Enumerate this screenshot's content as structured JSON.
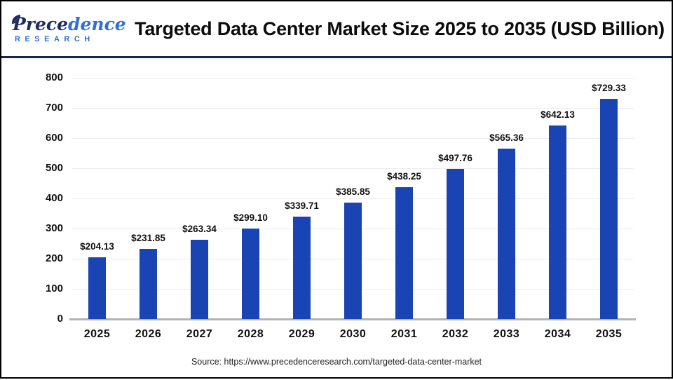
{
  "header": {
    "logo": {
      "name_navy": "Prece",
      "name_blue": "dence",
      "subtitle": "RESEARCH"
    }
  },
  "chart_data": {
    "type": "bar",
    "title": "Targeted Data Center Market Size 2025 to 2035 (USD Billion)",
    "categories": [
      "2025",
      "2026",
      "2027",
      "2028",
      "2029",
      "2030",
      "2031",
      "2032",
      "2033",
      "2034",
      "2035"
    ],
    "values": [
      204.13,
      231.85,
      263.34,
      299.1,
      339.71,
      385.85,
      438.25,
      497.76,
      565.36,
      642.13,
      729.33
    ],
    "bar_labels": [
      "$204.13",
      "$231.85",
      "$263.34",
      "$299.10",
      "$339.71",
      "$385.85",
      "$438.25",
      "$497.76",
      "$565.36",
      "$642.13",
      "$729.33"
    ],
    "xlabel": "",
    "ylabel": "",
    "ylim": [
      0,
      800
    ],
    "yticks": [
      0,
      100,
      200,
      300,
      400,
      500,
      600,
      700,
      800
    ],
    "grid": "horizontal",
    "legend": "none",
    "bar_color": "#1a44b4"
  },
  "footer": {
    "source": "Source: https://www.precedenceresearch.com/targeted-data-center-market"
  },
  "colors": {
    "bar": "#1a44b4",
    "separator": "#1a2450",
    "gridline": "#ececec",
    "axis_line": "#b3b3b3",
    "logo_navy": "#1d2d64",
    "logo_blue": "#306fd6",
    "title_text": "#0c0c0c"
  }
}
